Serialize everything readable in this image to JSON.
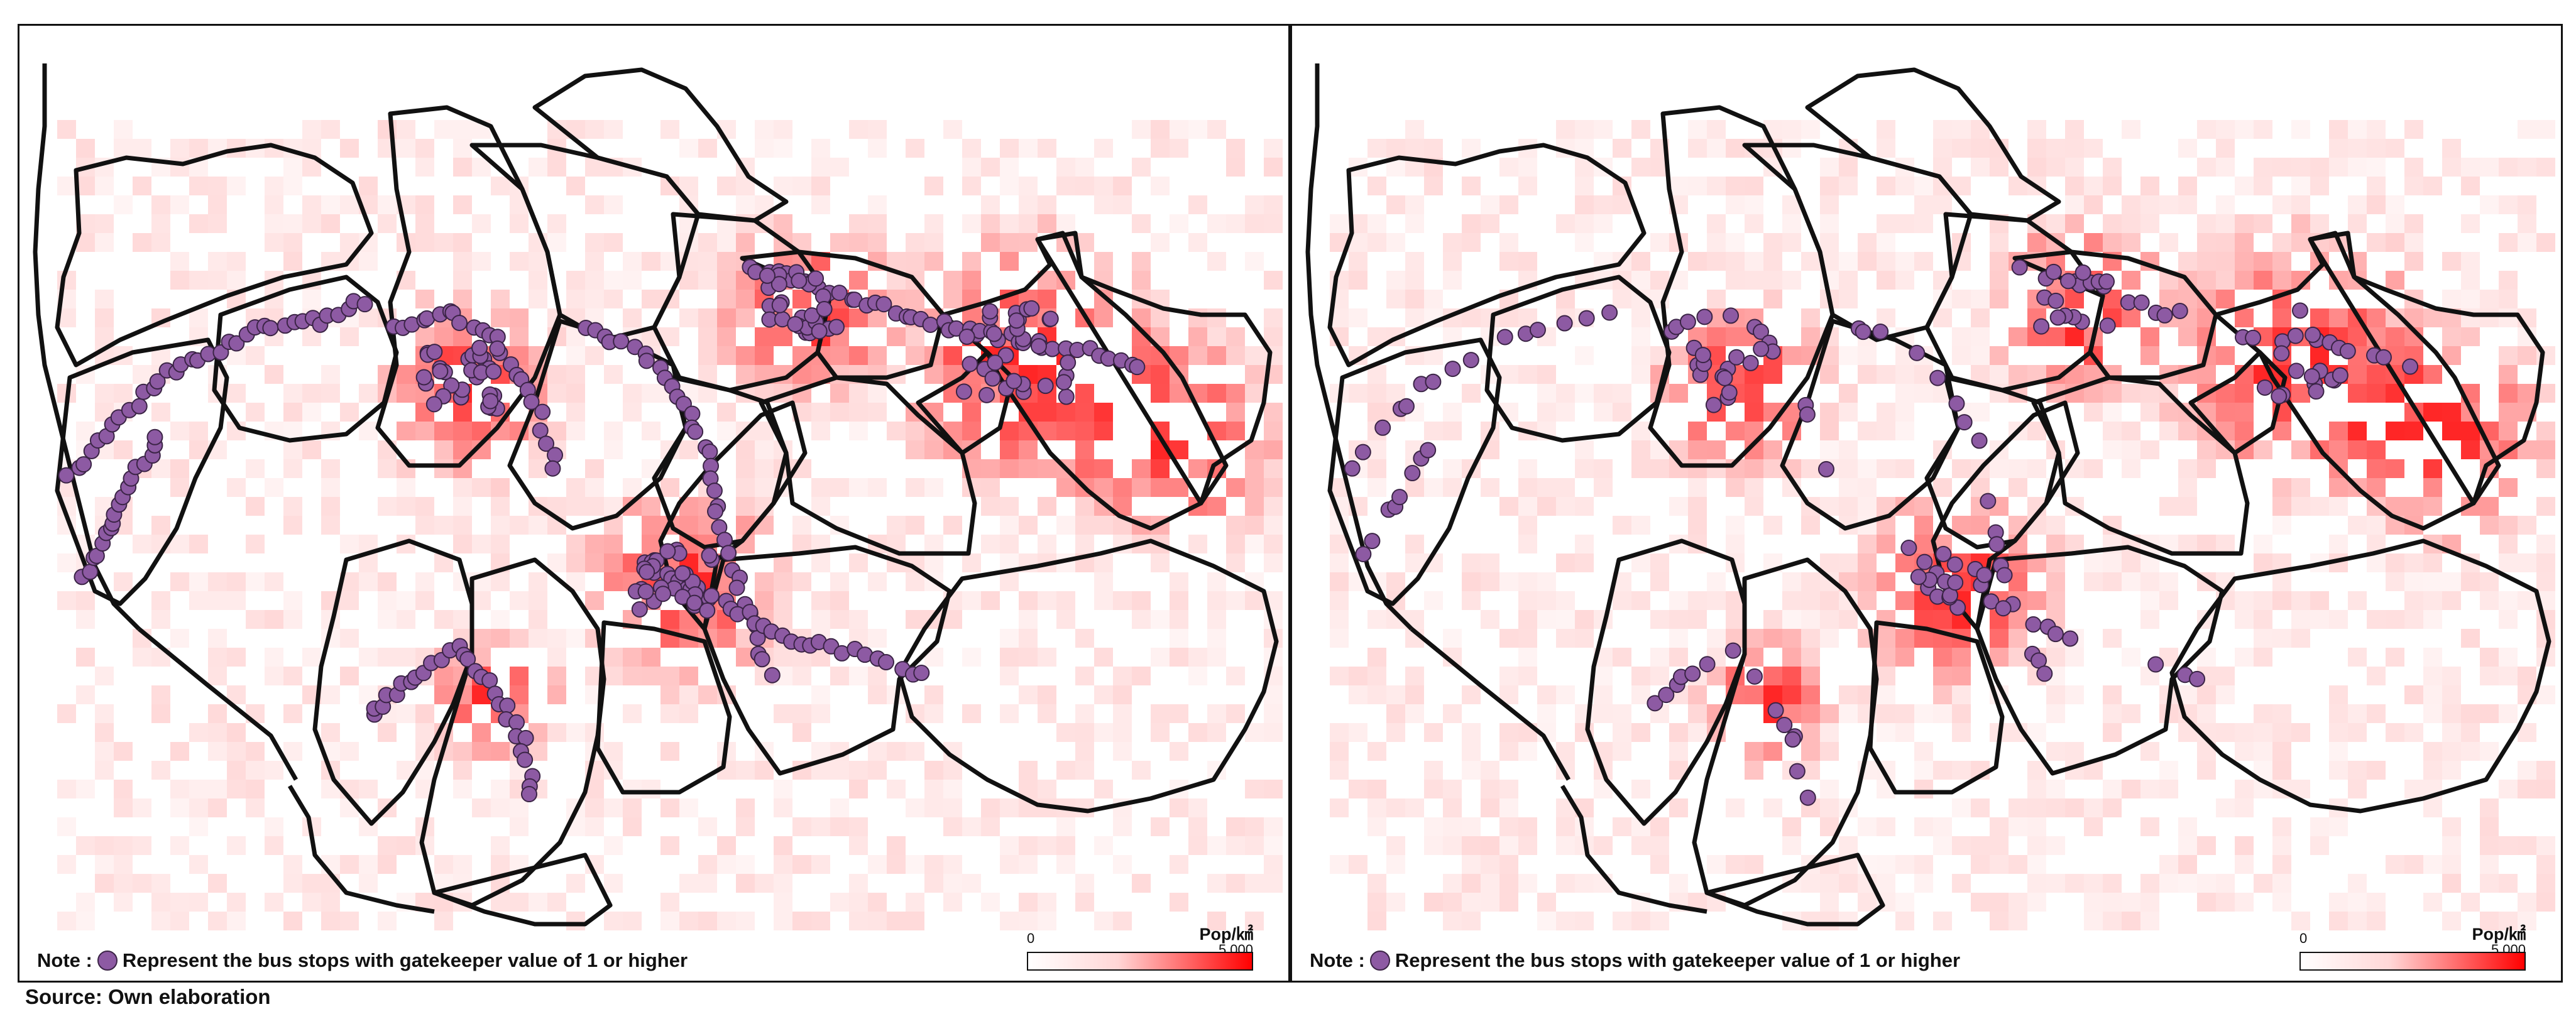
{
  "panels": [
    {
      "id": "left",
      "note": {
        "prefix": "Note :",
        "text": "Represent the bus stops with gatekeeper value of 1 or higher"
      },
      "legend": {
        "unit": "Pop/㎢",
        "min": "0",
        "max": "5,000"
      }
    },
    {
      "id": "right",
      "note": {
        "prefix": "Note :",
        "text": "Represent the bus stops with gatekeeper value of 1 or higher"
      },
      "legend": {
        "unit": "Pop/㎢",
        "min": "0",
        "max": "5,000"
      }
    }
  ],
  "source": "Source: Own elaboration",
  "colors": {
    "density_low": "#ffffff",
    "density_mid": "#ffb3b3",
    "density_high": "#ff0000",
    "bus_stop": "#8d5aa3",
    "bus_stop_outline": "#3b2446",
    "boundary": "#111111"
  }
}
